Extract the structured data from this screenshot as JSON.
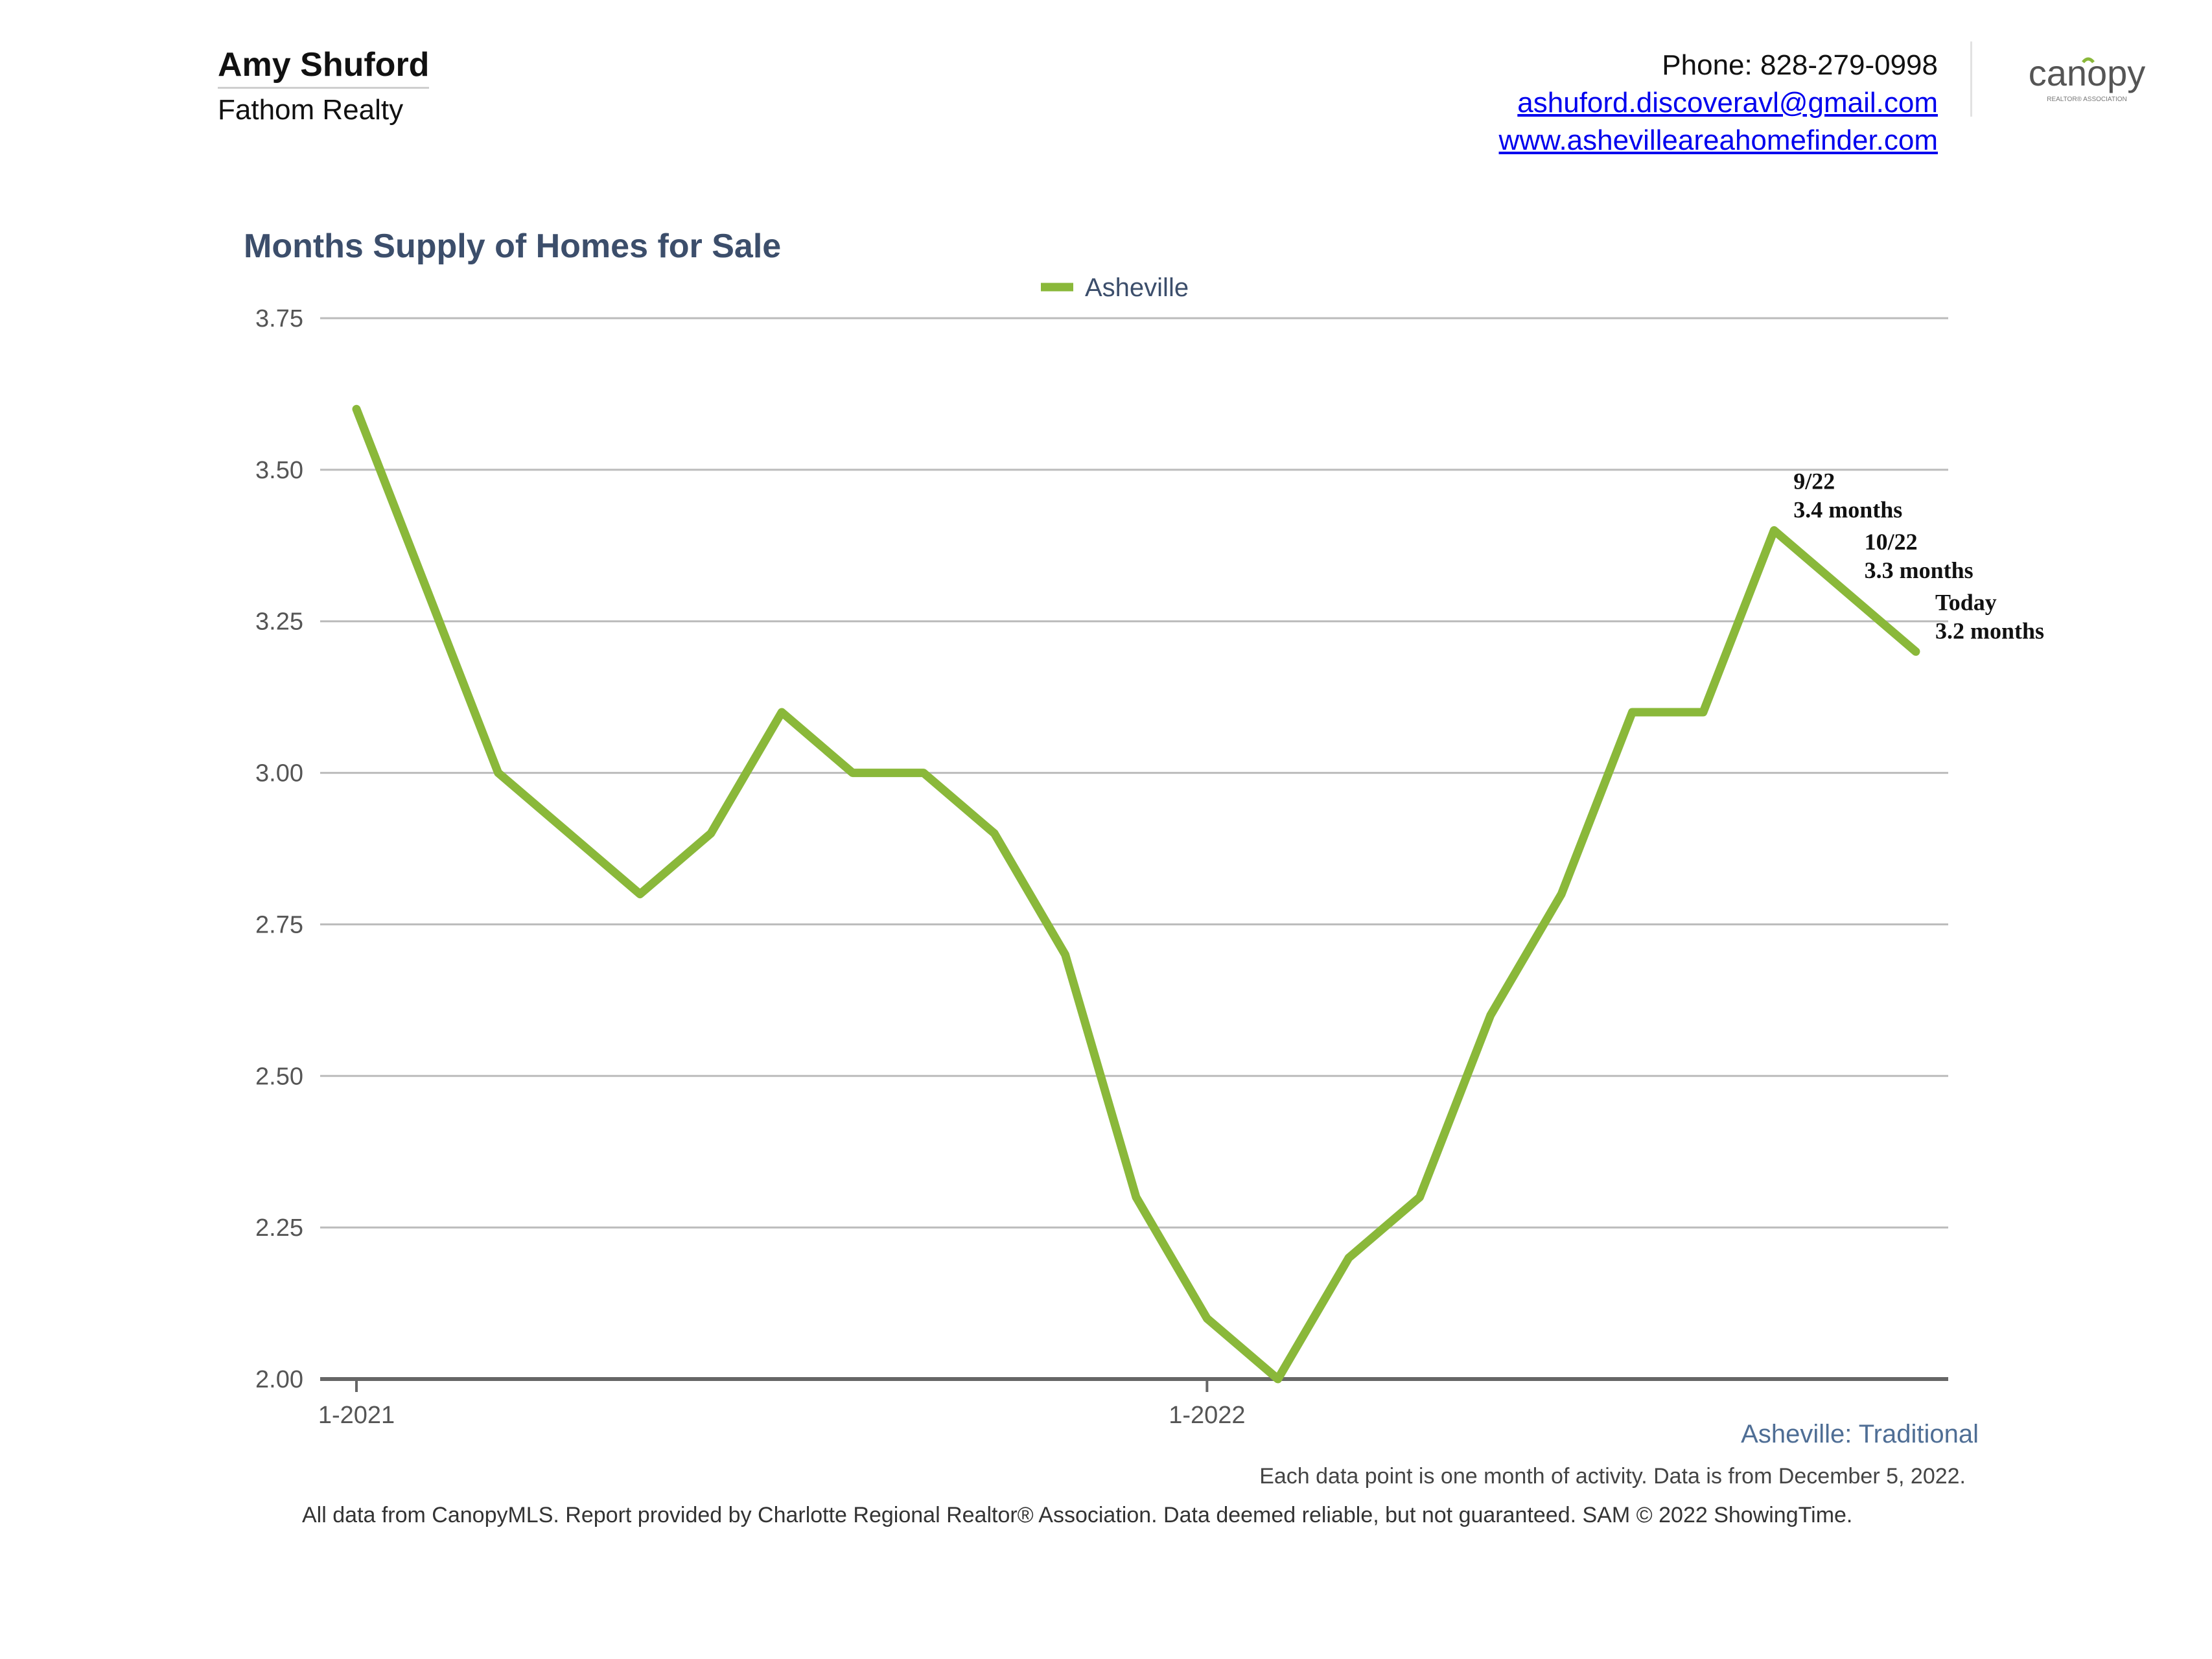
{
  "header": {
    "agent_name": "Amy Shuford",
    "brokerage": "Fathom Realty",
    "phone": "Phone: 828-279-0998",
    "email": "ashuford.discoveravl@gmail.com",
    "website": "www.ashevilleareahomefinder.com",
    "logo_text": "canopy",
    "logo_subtext": "REALTOR® ASSOCIATION"
  },
  "market_label": "Asheville: Traditional",
  "data_note": "Each data point is one month of activity. Data is from December 5, 2022.",
  "footer_note": "All data from CanopyMLS. Report provided by Charlotte Regional Realtor® Association. Data deemed reliable, but not guaranteed. SAM © 2022 ShowingTime.",
  "colors": {
    "series": "#8ab83a",
    "title": "#3c4e6b",
    "grid": "#bbbbbb",
    "axis": "#666666",
    "link": "#0000ee",
    "market_label": "#4f6e95"
  },
  "chart_data": {
    "type": "line",
    "title": "Months Supply of Homes for Sale",
    "xlabel": "",
    "ylabel": "",
    "ylim": [
      2.0,
      3.75
    ],
    "yticks": [
      "2.00",
      "2.25",
      "2.50",
      "2.75",
      "3.00",
      "3.25",
      "3.50",
      "3.75"
    ],
    "x_tick_labels": [
      {
        "label": "1-2021",
        "index": 0
      },
      {
        "label": "1-2022",
        "index": 12
      }
    ],
    "grid": true,
    "legend_position": "top-center",
    "x": [
      "1-2021",
      "2-2021",
      "3-2021",
      "4-2021",
      "5-2021",
      "6-2021",
      "7-2021",
      "8-2021",
      "9-2021",
      "10-2021",
      "11-2021",
      "12-2021",
      "1-2022",
      "2-2022",
      "3-2022",
      "4-2022",
      "5-2022",
      "6-2022",
      "7-2022",
      "8-2022",
      "9-2022",
      "10-2022",
      "Today"
    ],
    "series": [
      {
        "name": "Asheville",
        "values": [
          3.6,
          3.3,
          3.0,
          2.9,
          2.8,
          2.9,
          3.1,
          3.0,
          3.0,
          2.9,
          2.7,
          2.3,
          2.1,
          2.0,
          2.2,
          2.3,
          2.6,
          2.8,
          3.1,
          3.1,
          3.4,
          3.3,
          3.2
        ]
      }
    ],
    "annotations": [
      {
        "index": 20,
        "lines": [
          "9/22",
          "3.4 months"
        ]
      },
      {
        "index": 21,
        "lines": [
          "10/22",
          "3.3 months"
        ]
      },
      {
        "index": 22,
        "lines": [
          "Today",
          "3.2 months"
        ]
      }
    ]
  }
}
